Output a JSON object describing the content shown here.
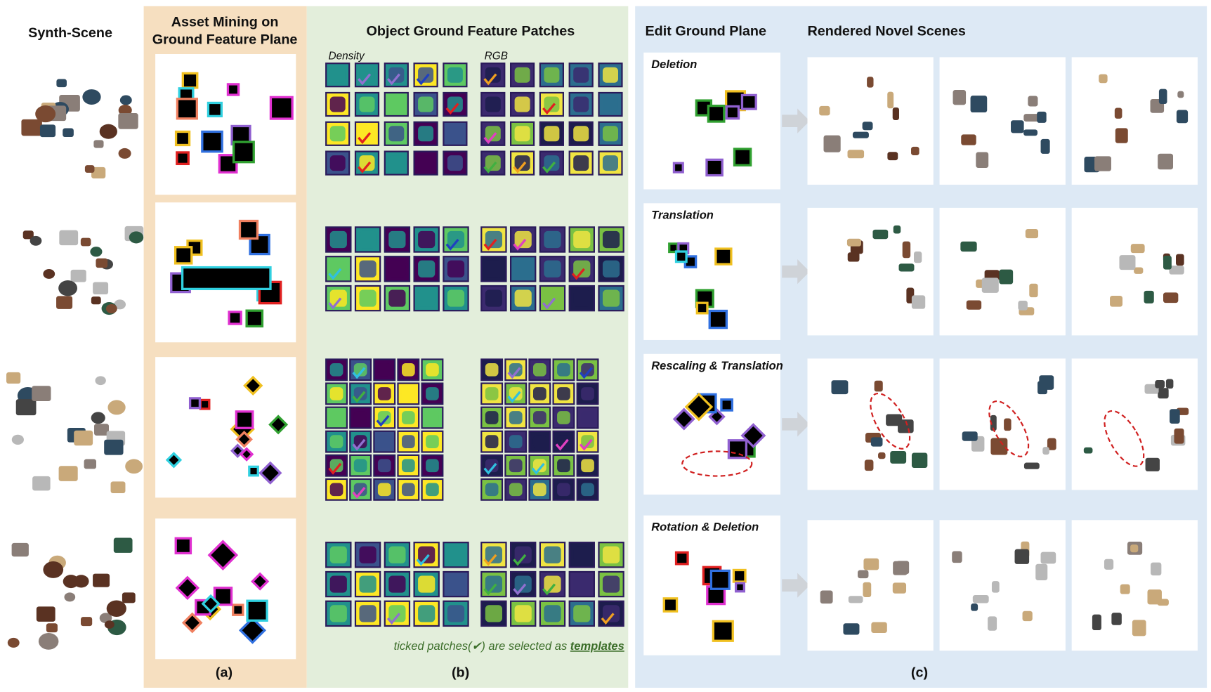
{
  "synth_scene": {
    "title": "Synth-Scene"
  },
  "asset_mining": {
    "title": [
      "Asset Mining on",
      "Ground Feature Plane"
    ],
    "label": "(a)"
  },
  "feature_patches": {
    "title": "Object Ground Feature Patches",
    "density_label": "Density",
    "rgb_label": "RGB",
    "caption_prefix": "ticked patches(✔) are selected as",
    "caption_emphasis": "templates",
    "label": "(b)"
  },
  "edit": {
    "title": "Edit Ground Plane",
    "render_title": "Rendered Novel Scenes",
    "label": "(c)",
    "operations": [
      "Deletion",
      "Translation",
      "Rescaling & Translation",
      "Rotation & Deletion"
    ]
  }
}
